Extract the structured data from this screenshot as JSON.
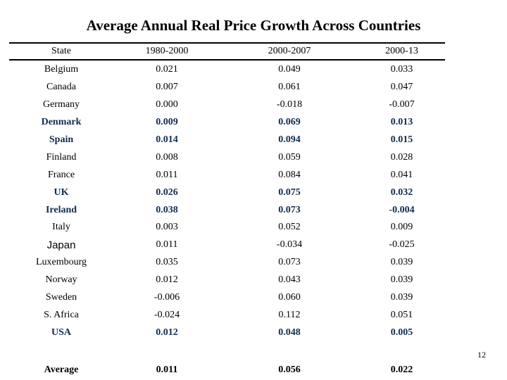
{
  "slide": {
    "title": "Average Annual Real Price Growth Across Countries",
    "page_number": "12"
  },
  "colors": {
    "background": "#ffffff",
    "text": "#000000",
    "emphasis_navy": "#112b4d"
  },
  "chart_data": {
    "type": "table",
    "title": "Average Annual Real Price Growth Across Countries",
    "columns": [
      "State",
      "1980-2000",
      "2000-2007",
      "2000-13"
    ],
    "rows": [
      {
        "state": "Belgium",
        "values": [
          "0.021",
          "0.049",
          "0.033"
        ],
        "emphasis": false,
        "sans_label": false
      },
      {
        "state": "Canada",
        "values": [
          "0.007",
          "0.061",
          "0.047"
        ],
        "emphasis": false,
        "sans_label": false
      },
      {
        "state": "Germany",
        "values": [
          "0.000",
          "-0.018",
          "-0.007"
        ],
        "emphasis": false,
        "sans_label": false
      },
      {
        "state": "Denmark",
        "values": [
          "0.009",
          "0.069",
          "0.013"
        ],
        "emphasis": true,
        "sans_label": false
      },
      {
        "state": "Spain",
        "values": [
          "0.014",
          "0.094",
          "0.015"
        ],
        "emphasis": true,
        "sans_label": false
      },
      {
        "state": "Finland",
        "values": [
          "0.008",
          "0.059",
          "0.028"
        ],
        "emphasis": false,
        "sans_label": false
      },
      {
        "state": "France",
        "values": [
          "0.011",
          "0.084",
          "0.041"
        ],
        "emphasis": false,
        "sans_label": false
      },
      {
        "state": "UK",
        "values": [
          "0.026",
          "0.075",
          "0.032"
        ],
        "emphasis": true,
        "sans_label": false
      },
      {
        "state": "Ireland",
        "values": [
          "0.038",
          "0.073",
          "-0.004"
        ],
        "emphasis": true,
        "sans_label": false
      },
      {
        "state": "Italy",
        "values": [
          "0.003",
          "0.052",
          "0.009"
        ],
        "emphasis": false,
        "sans_label": false
      },
      {
        "state": "Japan",
        "values": [
          "0.011",
          "-0.034",
          "-0.025"
        ],
        "emphasis": false,
        "sans_label": true
      },
      {
        "state": "Luxembourg",
        "values": [
          "0.035",
          "0.073",
          "0.039"
        ],
        "emphasis": false,
        "sans_label": false
      },
      {
        "state": "Norway",
        "values": [
          "0.012",
          "0.043",
          "0.039"
        ],
        "emphasis": false,
        "sans_label": false
      },
      {
        "state": "Sweden",
        "values": [
          "-0.006",
          "0.060",
          "0.039"
        ],
        "emphasis": false,
        "sans_label": false
      },
      {
        "state": "S. Africa",
        "values": [
          "-0.024",
          "0.112",
          "0.051"
        ],
        "emphasis": false,
        "sans_label": false
      },
      {
        "state": "USA",
        "values": [
          "0.012",
          "0.048",
          "0.005"
        ],
        "emphasis": true,
        "sans_label": false
      }
    ],
    "footer_row": {
      "state": "Average",
      "values": [
        "0.011",
        "0.056",
        "0.022"
      ]
    }
  }
}
